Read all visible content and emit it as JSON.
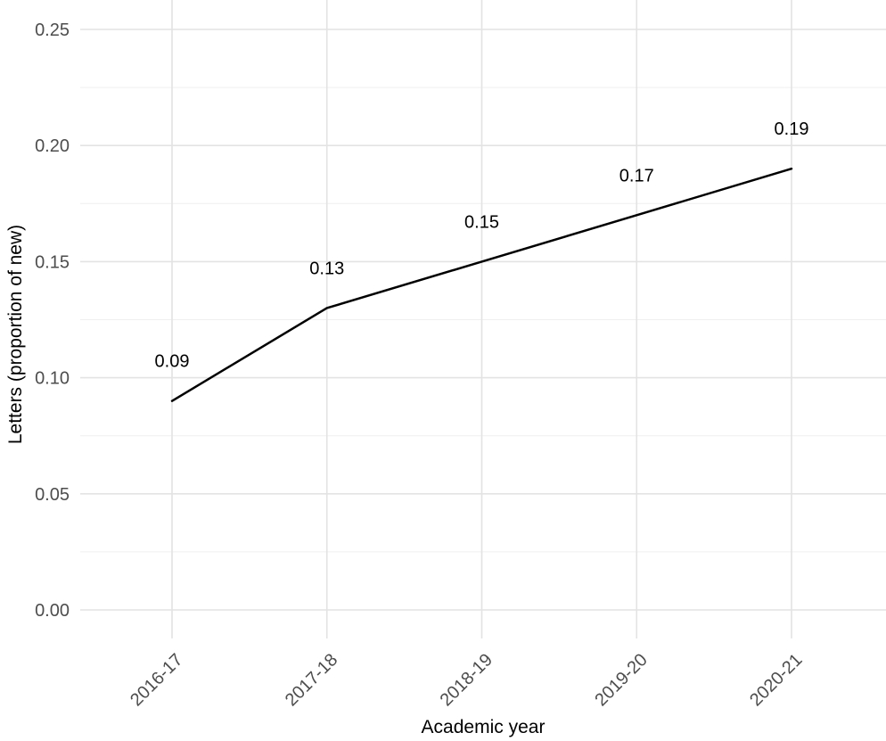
{
  "chart_data": {
    "type": "line",
    "title": "",
    "categories": [
      "2016-17",
      "2017-18",
      "2018-19",
      "2019-20",
      "2020-21"
    ],
    "values": [
      0.09,
      0.13,
      0.15,
      0.17,
      0.19
    ],
    "point_labels": [
      "0.09",
      "0.13",
      "0.15",
      "0.17",
      "0.19"
    ],
    "xlabel": "Academic year",
    "ylabel": "Letters (proportion of new)",
    "ylim": [
      0,
      0.25
    ],
    "y_tick_values": [
      0,
      0.05,
      0.1,
      0.15,
      0.2,
      0.25
    ],
    "y_tick_labels": [
      "0.00",
      "0.05",
      "0.10",
      "0.15",
      "0.20",
      "0.25"
    ],
    "y_minor_tick_values": [
      0.025,
      0.075,
      0.125,
      0.175,
      0.225
    ],
    "grid": true,
    "legend": "none",
    "colors": {
      "line": "#000000",
      "grid_major": "#e3e3e3",
      "grid_minor": "#efefef",
      "axis_text": "#4d4d4d",
      "title_text": "#000000",
      "background": "#ffffff"
    }
  }
}
